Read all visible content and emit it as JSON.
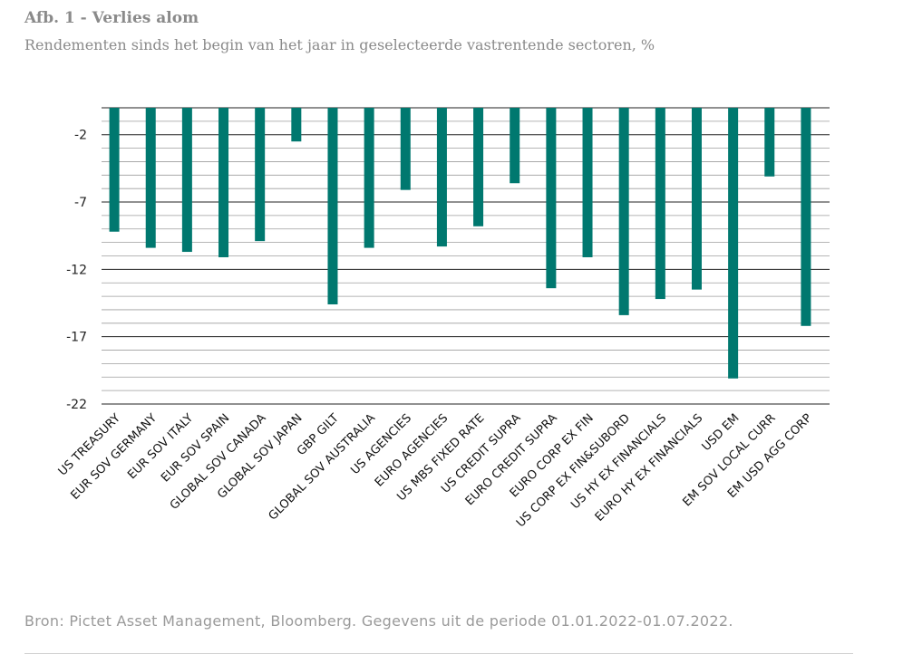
{
  "header": {
    "title": "Afb. 1 - Verlies alom",
    "subtitle": "Rendementen sinds het begin van het jaar in geselecteerde vastrentende sectoren, %"
  },
  "footer": {
    "source": "Bron: Pictet Asset Management, Bloomberg. Gegevens uit de periode 01.01.2022-01.07.2022."
  },
  "colors": {
    "bar": "#00786f",
    "grid": "#9e9e9e",
    "axis": "#222222"
  },
  "chart_data": {
    "type": "bar",
    "title": "Afb. 1 - Verlies alom",
    "subtitle": "Rendementen sinds het begin van het jaar in geselecteerde vastrentende sectoren, %",
    "xlabel": "",
    "ylabel": "",
    "ylim": [
      -22,
      0
    ],
    "yticks": [
      -2,
      -7,
      -12,
      -17,
      -22
    ],
    "grid": true,
    "categories": [
      "US TREASURY",
      "EUR SOV GERMANY",
      "EUR SOV ITALY",
      "EUR SOV SPAIN",
      "GLOBAL SOV CANADA",
      "GLOBAL SOV JAPAN",
      "GBP GILT",
      "GLOBAL SOV AUSTRALIA",
      "US AGENCIES",
      "EURO AGENCIES",
      "US MBS FIXED RATE",
      "US CREDIT SUPRA",
      "EURO CREDIT SUPRA",
      "EURO CORP EX FIN",
      "US CORP EX FIN&SUBORD",
      "US HY EX FINANCIALS",
      "EURO HY EX FINANCIALS",
      "USD EM",
      "EM SOV LOCAL CURR",
      "EM USD AGG CORP"
    ],
    "values": [
      -9.2,
      -10.4,
      -10.7,
      -11.1,
      -9.9,
      -2.5,
      -14.6,
      -10.4,
      -6.1,
      -10.3,
      -8.8,
      -5.6,
      -13.4,
      -11.1,
      -15.4,
      -14.2,
      -13.5,
      -20.1,
      -5.1,
      -16.2
    ]
  }
}
